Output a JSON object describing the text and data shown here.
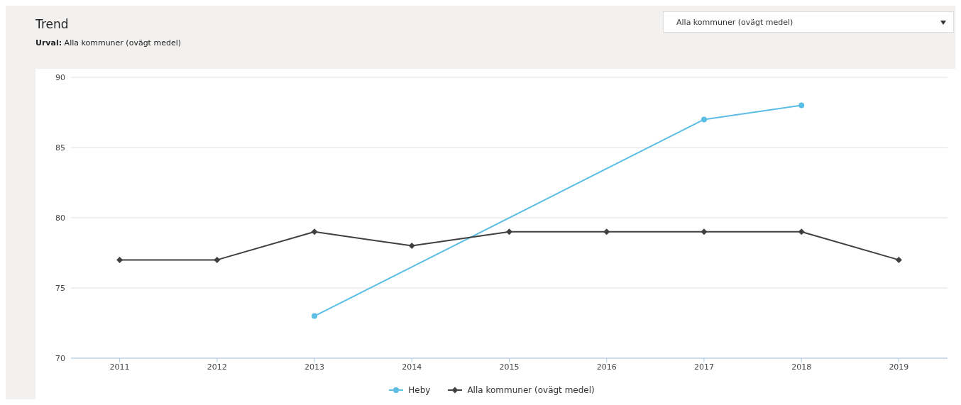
{
  "chart_data": {
    "type": "line",
    "title": "Trend",
    "subtitle": "Urval: Alla kommuner (ovägt medel)",
    "annotations": [
      "Alla kommuner (ovägt medel)"
    ],
    "xlim": [
      2010.5,
      2019.5
    ],
    "xticks": [
      2011,
      2012,
      2013,
      2014,
      2015,
      2016,
      2017,
      2018,
      2019
    ],
    "ylim": [
      70,
      90
    ],
    "yticks": [
      70,
      75,
      80,
      85,
      90
    ],
    "grid": "y",
    "legend": "bottom",
    "series": [
      {
        "name": "Heby",
        "color": "#5bbde4",
        "marker": "circle",
        "x": [
          2013,
          2017,
          2018
        ],
        "values": [
          73,
          87,
          88
        ]
      },
      {
        "name": "Alla kommuner (ovägt medel)",
        "color": "#404040",
        "marker": "diamond",
        "x": [
          2011,
          2012,
          2013,
          2014,
          2015,
          2016,
          2017,
          2018,
          2019
        ],
        "values": [
          77,
          77,
          79,
          78,
          79,
          79,
          79,
          79,
          77
        ]
      }
    ]
  }
}
